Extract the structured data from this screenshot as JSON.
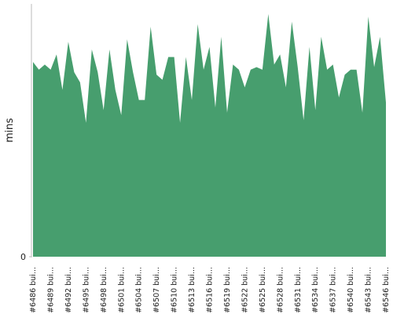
{
  "chart_data": {
    "type": "area",
    "y_label": "mins",
    "color": "#479e6e",
    "categories": [
      "#6486 bui...",
      null,
      null,
      "#6489 bui...",
      null,
      null,
      "#6492 bui...",
      null,
      null,
      "#6495 bui...",
      null,
      null,
      "#6498 bui...",
      null,
      null,
      "#6501 bui...",
      null,
      null,
      "#6504 bui...",
      null,
      null,
      "#6507 bui...",
      null,
      null,
      "#6510 bui...",
      null,
      null,
      "#6513 bui...",
      null,
      null,
      "#6516 bui...",
      null,
      null,
      "#6519 bui...",
      null,
      null,
      "#6522 bui...",
      null,
      null,
      "#6525 bui...",
      null,
      null,
      "#6528 bui...",
      null,
      null,
      "#6531 bui...",
      null,
      null,
      "#6534 bui...",
      null,
      null,
      "#6537 bui...",
      null,
      null,
      "#6540 bui...",
      null,
      null,
      "#6543 bui...",
      null,
      null,
      "#6546 bui..."
    ],
    "values": [
      77,
      74,
      76,
      74,
      80,
      66,
      85,
      73,
      69,
      53,
      82,
      73,
      58,
      82,
      66,
      56,
      86,
      73,
      62,
      62,
      91,
      72,
      70,
      79,
      79,
      53,
      79,
      62,
      92,
      74,
      83,
      59,
      87,
      57,
      76,
      74,
      67,
      74,
      75,
      74,
      96,
      76,
      80,
      67,
      93,
      75,
      54,
      83,
      58,
      87,
      74,
      76,
      63,
      72,
      74,
      74,
      57,
      95,
      75,
      87,
      61
    ],
    "ylim": [
      0,
      100
    ],
    "yticks": [
      0
    ]
  }
}
